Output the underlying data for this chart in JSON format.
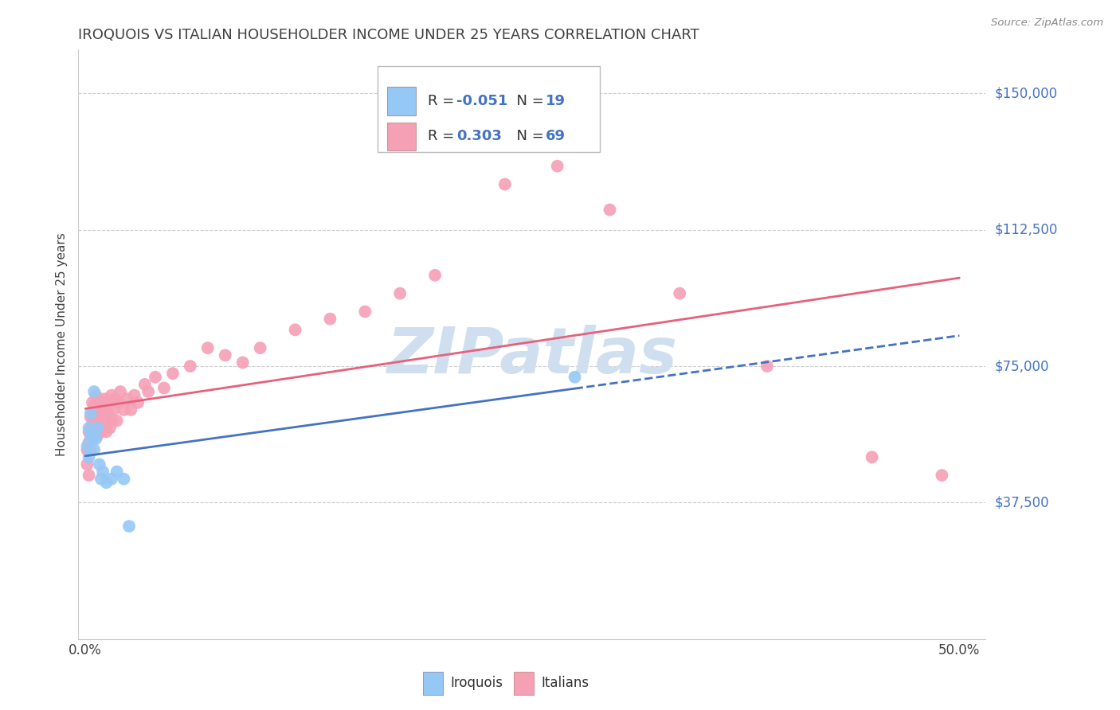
{
  "title": "IROQUOIS VS ITALIAN HOUSEHOLDER INCOME UNDER 25 YEARS CORRELATION CHART",
  "source": "Source: ZipAtlas.com",
  "ylabel": "Householder Income Under 25 years",
  "ytick_values": [
    37500,
    75000,
    112500,
    150000
  ],
  "ytick_labels": [
    "$37,500",
    "$75,000",
    "$112,500",
    "$150,000"
  ],
  "ymin": 0,
  "ymax": 162000,
  "xmin": -0.004,
  "xmax": 0.515,
  "legend_blue_r": "-0.051",
  "legend_blue_n": "19",
  "legend_pink_r": "0.303",
  "legend_pink_n": "69",
  "blue_color": "#96c8f5",
  "pink_color": "#f5a0b5",
  "blue_line_color": "#4472c4",
  "pink_line_color": "#e8607a",
  "label_color": "#4472c4",
  "title_color": "#404040",
  "watermark_color": "#d0dff0",
  "iroquois_x": [
    0.001,
    0.002,
    0.002,
    0.003,
    0.003,
    0.004,
    0.005,
    0.005,
    0.006,
    0.007,
    0.008,
    0.009,
    0.01,
    0.012,
    0.015,
    0.018,
    0.022,
    0.025,
    0.28
  ],
  "iroquois_y": [
    53000,
    58000,
    50000,
    62000,
    56000,
    55000,
    68000,
    52000,
    55000,
    58000,
    48000,
    44000,
    46000,
    43000,
    44000,
    46000,
    44000,
    31000,
    72000
  ],
  "italians_x": [
    0.001,
    0.001,
    0.002,
    0.002,
    0.002,
    0.003,
    0.003,
    0.003,
    0.003,
    0.004,
    0.004,
    0.004,
    0.005,
    0.005,
    0.005,
    0.006,
    0.006,
    0.006,
    0.007,
    0.007,
    0.007,
    0.008,
    0.008,
    0.008,
    0.009,
    0.009,
    0.01,
    0.01,
    0.011,
    0.011,
    0.012,
    0.012,
    0.013,
    0.013,
    0.014,
    0.015,
    0.015,
    0.016,
    0.017,
    0.018,
    0.019,
    0.02,
    0.022,
    0.024,
    0.026,
    0.028,
    0.03,
    0.034,
    0.036,
    0.04,
    0.045,
    0.05,
    0.06,
    0.07,
    0.08,
    0.09,
    0.1,
    0.12,
    0.14,
    0.16,
    0.18,
    0.2,
    0.24,
    0.27,
    0.3,
    0.34,
    0.39,
    0.45,
    0.49
  ],
  "italians_y": [
    48000,
    52000,
    57000,
    54000,
    45000,
    55000,
    61000,
    58000,
    52000,
    59000,
    65000,
    62000,
    60000,
    64000,
    57000,
    62000,
    67000,
    59000,
    65000,
    60000,
    56000,
    58000,
    63000,
    61000,
    57000,
    62000,
    65000,
    58000,
    66000,
    60000,
    63000,
    57000,
    62000,
    65000,
    58000,
    60000,
    67000,
    63000,
    66000,
    60000,
    65000,
    68000,
    63000,
    66000,
    63000,
    67000,
    65000,
    70000,
    68000,
    72000,
    69000,
    73000,
    75000,
    80000,
    78000,
    76000,
    80000,
    85000,
    88000,
    90000,
    95000,
    100000,
    125000,
    130000,
    118000,
    95000,
    75000,
    50000,
    45000
  ]
}
